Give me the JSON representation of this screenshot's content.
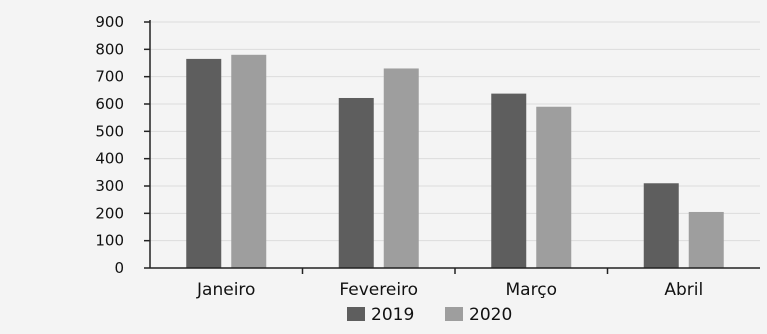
{
  "chart_data": {
    "type": "bar",
    "categories": [
      "Janeiro",
      "Fevereiro",
      "Março",
      "Abril"
    ],
    "series": [
      {
        "name": "2019",
        "values": [
          765,
          622,
          638,
          310
        ],
        "color": "#5e5e5e"
      },
      {
        "name": "2020",
        "values": [
          780,
          730,
          590,
          205
        ],
        "color": "#9e9e9e"
      }
    ],
    "title": "",
    "xlabel": "",
    "ylabel": "",
    "ylim": [
      0,
      900
    ],
    "yticks": [
      "0",
      "100",
      "200",
      "300",
      "400",
      "500",
      "600",
      "700",
      "800",
      "900"
    ],
    "grid": true,
    "legend_position": "bottom-center"
  }
}
